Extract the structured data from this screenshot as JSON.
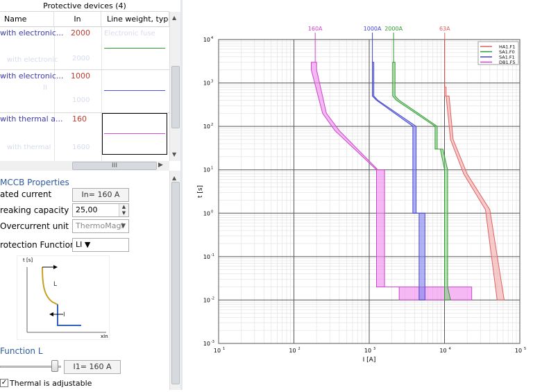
{
  "devices_panel": {
    "title": "Protective devices (4)",
    "columns": [
      "Name",
      "In",
      "Line weight, type,"
    ],
    "rows": [
      {
        "name": "with electronic...",
        "in": "2000",
        "color": "#2e9b2e"
      },
      {
        "name": "with electronic...",
        "in": "1000",
        "color": "#5050e0"
      },
      {
        "name": "with thermal a...",
        "in": "160",
        "color": "#d54bd5"
      }
    ],
    "hscroll_thumb": "III"
  },
  "props": {
    "title": "MCCB Properties",
    "rated_current_label": "ated current",
    "rated_current_value": "In= 160 A",
    "breaking_label": "reaking capacity",
    "breaking_value": "25,00",
    "overcurrent_label": "Overcurrent unit",
    "overcurrent_value": "ThermoMagi",
    "protection_label": "rotection Functions",
    "protection_value": "LI",
    "mini_t_label": "t [s]",
    "mini_L": "L",
    "mini_I": "I",
    "mini_x_label": "xIn"
  },
  "function_l": {
    "title": "Function L",
    "i1_value": "I1= 160 A",
    "thermal_label": "Thermal is adjustable",
    "thermal_checked": true
  },
  "chart_data": {
    "type": "line",
    "xlabel": "I [A]",
    "ylabel": "t [s]",
    "x_scale": "log",
    "y_scale": "log",
    "xlim": [
      10,
      100000
    ],
    "ylim": [
      0.001,
      10000
    ],
    "x_ticks": [
      "10",
      "10",
      "10",
      "10",
      "10"
    ],
    "x_tick_exponents": [
      "1",
      "2",
      "3",
      "4",
      "5"
    ],
    "y_ticks": [
      "10",
      "10",
      "10",
      "10",
      "10",
      "10",
      "10",
      "10"
    ],
    "y_tick_exponents": [
      "4",
      "3",
      "2",
      "1",
      "0",
      "-1",
      "-2",
      "-3"
    ],
    "grid": true,
    "legend_position": "top-right",
    "legend": [
      {
        "label": "HA1.F1",
        "color": "#e06060"
      },
      {
        "label": "SA1.F0",
        "color": "#2e9b2e"
      },
      {
        "label": "SA1.F1",
        "color": "#4040d0"
      },
      {
        "label": "DB1.F5",
        "color": "#cc44cc"
      }
    ],
    "series": [
      {
        "name": "DB1.F5",
        "top_label": "160A",
        "color": "#cc44cc",
        "fill": "#ee88ee",
        "band": {
          "upper": [
            [
              200,
              3000
            ],
            [
              200,
              2000
            ],
            [
              270,
              200
            ],
            [
              400,
              80
            ],
            [
              1300,
              10
            ],
            [
              1600,
              10
            ],
            [
              1600,
              0.02
            ],
            [
              2500,
              0.02
            ],
            [
              2500,
              0.01
            ],
            [
              23000,
              0.01
            ],
            [
              23000,
              0.02
            ]
          ],
          "lower": [
            [
              170,
              3000
            ],
            [
              170,
              2000
            ],
            [
              240,
              200
            ],
            [
              350,
              80
            ],
            [
              1250,
              10
            ],
            [
              1250,
              0.02
            ]
          ]
        }
      },
      {
        "name": "SA1.F1",
        "top_label": "1000A",
        "color": "#4040d0",
        "fill": "#8080ee",
        "band": {
          "upper": [
            [
              1150,
              3000
            ],
            [
              1150,
              500
            ],
            [
              1300,
              400
            ],
            [
              4200,
              100
            ],
            [
              4200,
              1
            ],
            [
              5500,
              1
            ],
            [
              5500,
              0.01
            ]
          ],
          "lower": [
            [
              1100,
              3000
            ],
            [
              1100,
              500
            ],
            [
              1250,
              400
            ],
            [
              3800,
              100
            ],
            [
              3800,
              1
            ],
            [
              4600,
              1
            ],
            [
              4600,
              0.01
            ]
          ]
        }
      },
      {
        "name": "SA1.F0",
        "top_label": "2000A",
        "color": "#2e9b2e",
        "fill": "#88cc88",
        "band": {
          "upper": [
            [
              2200,
              3000
            ],
            [
              2200,
              500
            ],
            [
              2500,
              400
            ],
            [
              8000,
              100
            ],
            [
              8000,
              30
            ],
            [
              9500,
              30
            ],
            [
              11000,
              10
            ],
            [
              11000,
              0.02
            ],
            [
              12000,
              0.01
            ]
          ],
          "lower": [
            [
              2050,
              3000
            ],
            [
              2050,
              500
            ],
            [
              2300,
              400
            ],
            [
              7500,
              100
            ],
            [
              7500,
              30
            ],
            [
              8800,
              30
            ],
            [
              10000,
              10
            ],
            [
              10000,
              0.02
            ],
            [
              10000,
              0.01
            ]
          ]
        }
      },
      {
        "name": "HA1.F1",
        "top_label": "63A",
        "color": "#e06060",
        "fill": "#f0a8a8",
        "band": {
          "upper": [
            [
              10500,
              800
            ],
            [
              10500,
              500
            ],
            [
              11500,
              500
            ],
            [
              13000,
              50
            ],
            [
              20000,
              8
            ],
            [
              40000,
              1.2
            ],
            [
              62000,
              0.01
            ]
          ],
          "lower": [
            [
              10000,
              800
            ],
            [
              10000,
              500
            ],
            [
              10500,
              500
            ],
            [
              12000,
              50
            ],
            [
              18000,
              8
            ],
            [
              35000,
              1.2
            ],
            [
              50000,
              0.01
            ]
          ]
        }
      }
    ]
  }
}
